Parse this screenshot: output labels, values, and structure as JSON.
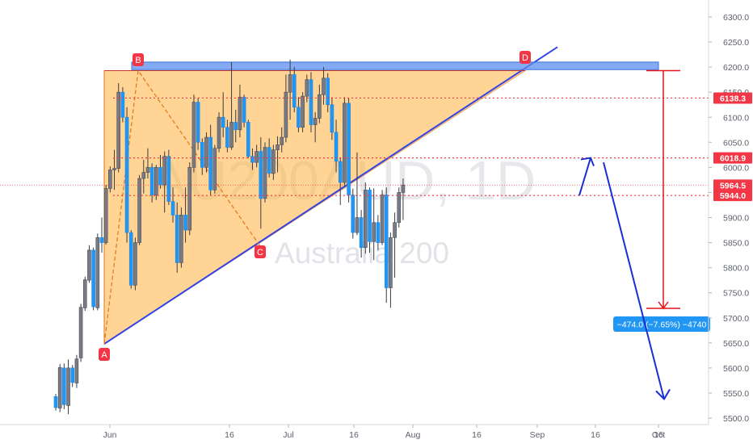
{
  "watermark": {
    "symbol": "AU200AUD, 1D",
    "name": "Australia 200"
  },
  "chart_data": {
    "type": "candlestick",
    "y_axis_ticks": [
      5500,
      5550,
      5600,
      5650,
      5700,
      5750,
      5800,
      5850,
      5900,
      5950,
      6000,
      6050,
      6100,
      6150,
      6200,
      6250,
      6300
    ],
    "y_axis_tick_labels": [
      "5500.0",
      "5550.0",
      "5600.0",
      "5650.0",
      "5700.0",
      "5750.0",
      "5800.0",
      "5850.0",
      "5900.0",
      "5950.0",
      "6000.0",
      "6050.0",
      "6100.0",
      "6150.0",
      "6200.0",
      "6250.0",
      "6300.0"
    ],
    "x_axis_ticks": [
      "Jun",
      "16",
      "Jul",
      "16",
      "Aug",
      "16",
      "Sep",
      "16",
      "Oct",
      "16"
    ],
    "y_range": [
      5485,
      6330
    ],
    "price_labels": [
      {
        "value": 6138.3,
        "text": "6138.3",
        "color": "#f23645",
        "line": "dotted"
      },
      {
        "value": 6018.9,
        "text": "6018.9",
        "color": "#f23645",
        "line": "dotted"
      },
      {
        "value": 5964.5,
        "text": "5964.5",
        "color": "#f23645",
        "line": "thin"
      },
      {
        "value": 5944.0,
        "text": "5944.0",
        "color": "#f23645",
        "line": "dotted"
      }
    ],
    "resistance_zone": {
      "top": 6210,
      "bottom": 6195,
      "color": "#5b8def"
    },
    "pattern_points": [
      {
        "label": "A",
        "date_index": 3,
        "price": 5648
      },
      {
        "label": "B",
        "date_index": 8,
        "price": 6193
      },
      {
        "label": "C",
        "date_index": 39,
        "price": 5843
      },
      {
        "label": "D",
        "date_index": 75,
        "price": 6199
      }
    ],
    "measurement": {
      "label": "−474.0 (−7.65%) −4740",
      "from_price": 6193,
      "to_price": 5719
    },
    "projection_path": [
      {
        "date_index": 89,
        "price": 5944
      },
      {
        "date_index": 92,
        "price": 6019
      },
      {
        "date_index": 106,
        "price": 5538
      }
    ],
    "colors": {
      "up": "#787b86",
      "down": "#2196f3",
      "pattern_fill": "#ffb74d",
      "pattern_line": "#3144e8",
      "projection": "#1a2fd1",
      "measure": "#e2141a"
    },
    "candles": [
      [
        5543,
        5548,
        5515,
        5521
      ],
      [
        5520,
        5608,
        5512,
        5601
      ],
      [
        5600,
        5609,
        5518,
        5527
      ],
      [
        5525,
        5617,
        5508,
        5600
      ],
      [
        5600,
        5606,
        5562,
        5571
      ],
      [
        5570,
        5626,
        5560,
        5618
      ],
      [
        5620,
        5728,
        5612,
        5721
      ],
      [
        5720,
        5782,
        5714,
        5776
      ],
      [
        5775,
        5845,
        5770,
        5835
      ],
      [
        5835,
        5840,
        5715,
        5722
      ],
      [
        5720,
        5868,
        5715,
        5860
      ],
      [
        5860,
        5900,
        5830,
        5850
      ],
      [
        5850,
        5965,
        5846,
        5958
      ],
      [
        5958,
        6002,
        5950,
        5995
      ],
      [
        5995,
        6035,
        5955,
        5998
      ],
      [
        5998,
        6168,
        5990,
        6150
      ],
      [
        6150,
        6160,
        6090,
        6100
      ],
      [
        6100,
        6120,
        5850,
        5870
      ],
      [
        5870,
        5875,
        5758,
        5765
      ],
      [
        5765,
        5860,
        5755,
        5850
      ],
      [
        5850,
        5985,
        5845,
        5978
      ],
      [
        5978,
        6015,
        5948,
        5990
      ],
      [
        5990,
        6038,
        5978,
        6000
      ],
      [
        6000,
        6008,
        5930,
        5945
      ],
      [
        5945,
        6005,
        5935,
        6000
      ],
      [
        6000,
        6025,
        5958,
        5965
      ],
      [
        5965,
        6032,
        5910,
        6022
      ],
      [
        6022,
        6035,
        5925,
        5932
      ],
      [
        5932,
        5960,
        5890,
        5905
      ],
      [
        5905,
        5930,
        5790,
        5810
      ],
      [
        5810,
        5920,
        5800,
        5905
      ],
      [
        5905,
        5960,
        5850,
        5875
      ],
      [
        5875,
        6010,
        5865,
        6000
      ],
      [
        6000,
        6145,
        5990,
        6130
      ],
      [
        6130,
        6138,
        6035,
        6050
      ],
      [
        6050,
        6058,
        5985,
        6000
      ],
      [
        6000,
        6070,
        5990,
        6060
      ],
      [
        6060,
        6085,
        5945,
        5955
      ],
      [
        5955,
        6045,
        5948,
        6038
      ],
      [
        6038,
        6110,
        6030,
        6100
      ],
      [
        6100,
        6150,
        6060,
        6080
      ],
      [
        6080,
        6095,
        6030,
        6040
      ],
      [
        6040,
        6210,
        6035,
        6090
      ],
      [
        6090,
        6115,
        6050,
        6075
      ],
      [
        6075,
        6165,
        6060,
        6140
      ],
      [
        6140,
        6145,
        6080,
        6090
      ],
      [
        6090,
        6095,
        6018,
        6022
      ],
      [
        6022,
        6038,
        5995,
        6010
      ],
      [
        6010,
        6045,
        6000,
        6032
      ],
      [
        6032,
        6060,
        5878,
        5938
      ],
      [
        5938,
        6050,
        5930,
        6040
      ],
      [
        6040,
        6058,
        5980,
        5988
      ],
      [
        5988,
        6045,
        5975,
        6035
      ],
      [
        6035,
        6062,
        5990,
        6045
      ],
      [
        6045,
        6080,
        6030,
        6060
      ],
      [
        6060,
        6185,
        6050,
        6150
      ],
      [
        6150,
        6215,
        6095,
        6185
      ],
      [
        6185,
        6200,
        6110,
        6120
      ],
      [
        6120,
        6140,
        6070,
        6080
      ],
      [
        6080,
        6150,
        6070,
        6142
      ],
      [
        6142,
        6185,
        6130,
        6175
      ],
      [
        6175,
        6190,
        6070,
        6085
      ],
      [
        6085,
        6110,
        6050,
        6098
      ],
      [
        6098,
        6165,
        6088,
        6145
      ],
      [
        6145,
        6200,
        6125,
        6178
      ],
      [
        6178,
        6188,
        6110,
        6125
      ],
      [
        6125,
        6140,
        6055,
        6070
      ],
      [
        6070,
        6095,
        5990,
        6012
      ],
      [
        6012,
        6020,
        5925,
        5970
      ],
      [
        5970,
        6140,
        5962,
        6128
      ],
      [
        6128,
        6138,
        5930,
        5945
      ],
      [
        5945,
        5958,
        5858,
        5870
      ],
      [
        5870,
        6030,
        5865,
        5900
      ],
      [
        5900,
        5915,
        5820,
        5840
      ],
      [
        5840,
        5970,
        5828,
        5955
      ],
      [
        5955,
        5960,
        5830,
        5852
      ],
      [
        5852,
        5958,
        5815,
        5890
      ],
      [
        5890,
        5905,
        5835,
        5850
      ],
      [
        5850,
        5955,
        5845,
        5945
      ],
      [
        5945,
        5960,
        5730,
        5760
      ],
      [
        5760,
        5870,
        5720,
        5860
      ],
      [
        5860,
        5910,
        5780,
        5890
      ],
      [
        5890,
        5960,
        5880,
        5950
      ],
      [
        5950,
        5978,
        5895,
        5965
      ]
    ]
  }
}
